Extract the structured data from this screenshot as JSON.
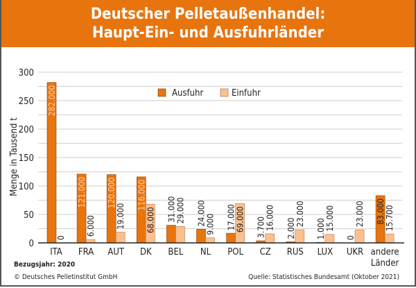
{
  "header": {
    "title_line1": "Deutscher Pelletaußenhandel:",
    "title_line2": "Haupt-Ein- und Ausfuhrländer"
  },
  "footer": {
    "reference_year": "Bezugsjahr: 2020",
    "copyright": "© Deutsches Pelletinstitut GmbH",
    "source": "Quelle: Statistisches Bundesamt (Oktober 2021)"
  },
  "colors": {
    "brand_orange": "#e8740e",
    "ausfuhr": "#e8740e",
    "einfuhr": "#fbc08e",
    "label_on_bar": "#fcd3ae",
    "label_dark": "#222222"
  },
  "chart_data": {
    "type": "bar",
    "title": "Deutscher Pelletaußenhandel: Haupt-Ein- und Ausfuhrländer",
    "xlabel": "",
    "ylabel": "Menge in Tausend t",
    "ylim": [
      0,
      300
    ],
    "yticks": [
      0,
      50,
      100,
      150,
      200,
      250,
      300
    ],
    "grid": true,
    "grid_step": 25,
    "legend_position": "top-center",
    "categories": [
      "ITA",
      "FRA",
      "AUT",
      "DK",
      "BEL",
      "NL",
      "POL",
      "CZ",
      "RUS",
      "LUX",
      "UKR",
      "andere Länder"
    ],
    "series": [
      {
        "name": "Ausfuhr",
        "values": [
          282,
          121,
          120,
          116,
          31,
          24,
          17,
          3.7,
          2,
          1,
          0,
          83
        ],
        "labels": [
          "282.000",
          "121.000",
          "120.000",
          "116.000",
          "31.000",
          "24.000",
          "17.000",
          "3.700",
          "2.000",
          "1.000",
          "0",
          "83.000"
        ]
      },
      {
        "name": "Einfuhr",
        "values": [
          0,
          6,
          19,
          68,
          29,
          9,
          69,
          16,
          23,
          15,
          23,
          15.7
        ],
        "labels": [
          "0",
          "6.000",
          "19.000",
          "68.000",
          "29.000",
          "9.000",
          "69.000",
          "16.000",
          "23.000",
          "15.000",
          "23.000",
          "15.700"
        ]
      }
    ]
  }
}
